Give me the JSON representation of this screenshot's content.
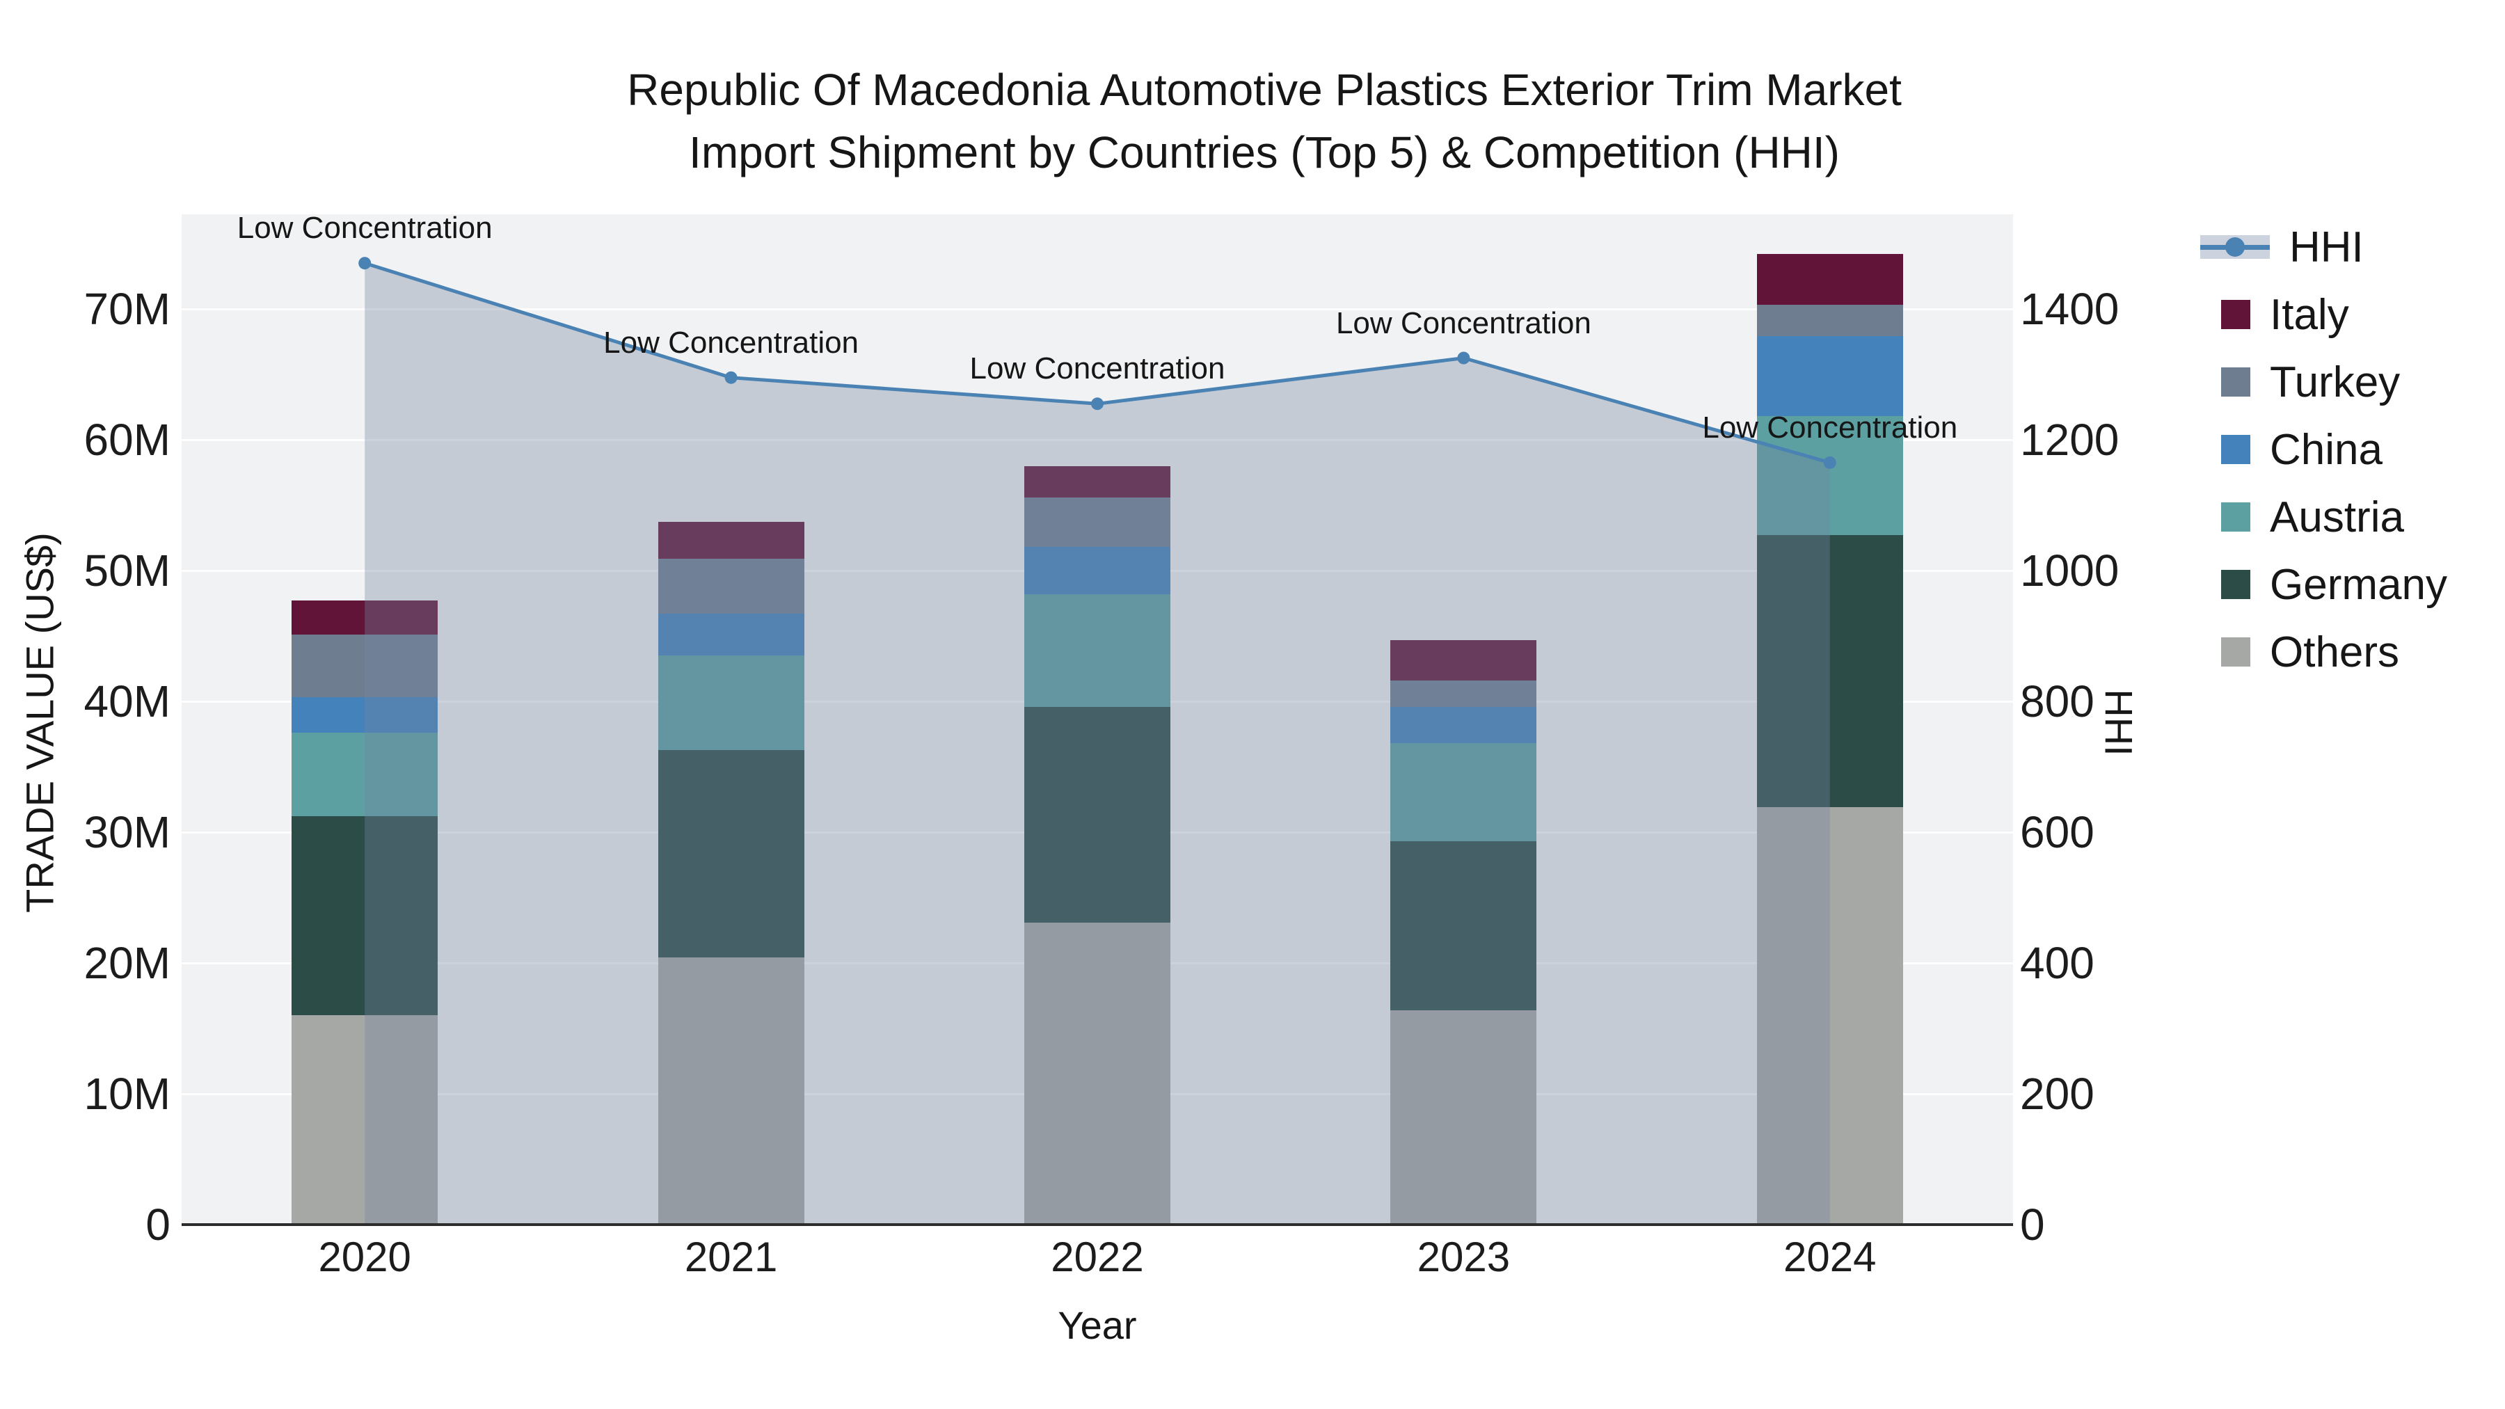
{
  "title_line1": "Republic Of Macedonia Automotive Plastics Exterior Trim Market",
  "title_line2": "Import Shipment by Countries (Top 5) & Competition (HHI)",
  "axes": {
    "x": {
      "title": "Year"
    },
    "y_left": {
      "title": "TRADE VALUE (US$)",
      "ticks": [
        "0",
        "10M",
        "20M",
        "30M",
        "40M",
        "50M",
        "60M",
        "70M"
      ]
    },
    "y_right": {
      "title": "HHI",
      "ticks": [
        "0",
        "200",
        "400",
        "600",
        "800",
        "1000",
        "1200",
        "1400"
      ]
    }
  },
  "legend": {
    "entries": [
      {
        "label": "HHI",
        "type": "line",
        "color": "#4a82b4"
      },
      {
        "label": "Italy",
        "type": "swatch",
        "color": "#621338"
      },
      {
        "label": "Turkey",
        "type": "swatch",
        "color": "#6e7d90"
      },
      {
        "label": "China",
        "type": "swatch",
        "color": "#4382bb"
      },
      {
        "label": "Austria",
        "type": "swatch",
        "color": "#5ca0a2"
      },
      {
        "label": "Germany",
        "type": "swatch",
        "color": "#2c4c48"
      },
      {
        "label": "Others",
        "type": "swatch",
        "color": "#a6a8a5"
      }
    ]
  },
  "chart_data": {
    "type": "combo: stacked bar (left axis, US$ millions) + line (right axis, HHI)",
    "title": "Republic Of Macedonia Automotive Plastics Exterior Trim Market Import Shipment by Countries (Top 5) & Competition (HHI)",
    "xlabel": "Year",
    "ylabel_left": "TRADE VALUE (US$)",
    "ylabel_right": "HHI",
    "categories": [
      "2020",
      "2021",
      "2022",
      "2023",
      "2024"
    ],
    "stack_order_bottom_to_top": [
      "Others",
      "Germany",
      "Austria",
      "China",
      "Turkey",
      "Italy"
    ],
    "series": [
      {
        "name": "Italy",
        "color": "#621338",
        "values_musd": [
          2.6,
          2.8,
          2.4,
          3.1,
          3.9
        ]
      },
      {
        "name": "Turkey",
        "color": "#6e7d90",
        "values_musd": [
          4.8,
          4.2,
          3.8,
          2.0,
          2.4
        ]
      },
      {
        "name": "China",
        "color": "#4382bb",
        "values_musd": [
          2.7,
          3.2,
          3.6,
          2.8,
          6.1
        ]
      },
      {
        "name": "Austria",
        "color": "#5ca0a2",
        "values_musd": [
          6.4,
          7.2,
          8.6,
          7.5,
          9.1
        ]
      },
      {
        "name": "Germany",
        "color": "#2c4c48",
        "values_musd": [
          15.2,
          15.9,
          16.5,
          12.9,
          20.8
        ]
      },
      {
        "name": "Others",
        "color": "#a6a8a5",
        "values_musd": [
          16.0,
          20.4,
          23.1,
          16.4,
          31.9
        ]
      }
    ],
    "bar_totals_musd": [
      47.7,
      53.7,
      58.0,
      44.7,
      74.2
    ],
    "line_series": {
      "name": "HHI",
      "values": [
        1470,
        1295,
        1255,
        1325,
        1165
      ],
      "color": "#4a82b4",
      "area_fill_color": "rgba(116,132,162,0.36)",
      "point_annotation": "Low Concentration"
    },
    "ylim_left_musd": [
      0,
      77.2
    ],
    "ylim_right_hhi": [
      0,
      1544
    ],
    "grid": "horizontal gridlines every 10M / 200 HHI",
    "legend_position": "right"
  }
}
